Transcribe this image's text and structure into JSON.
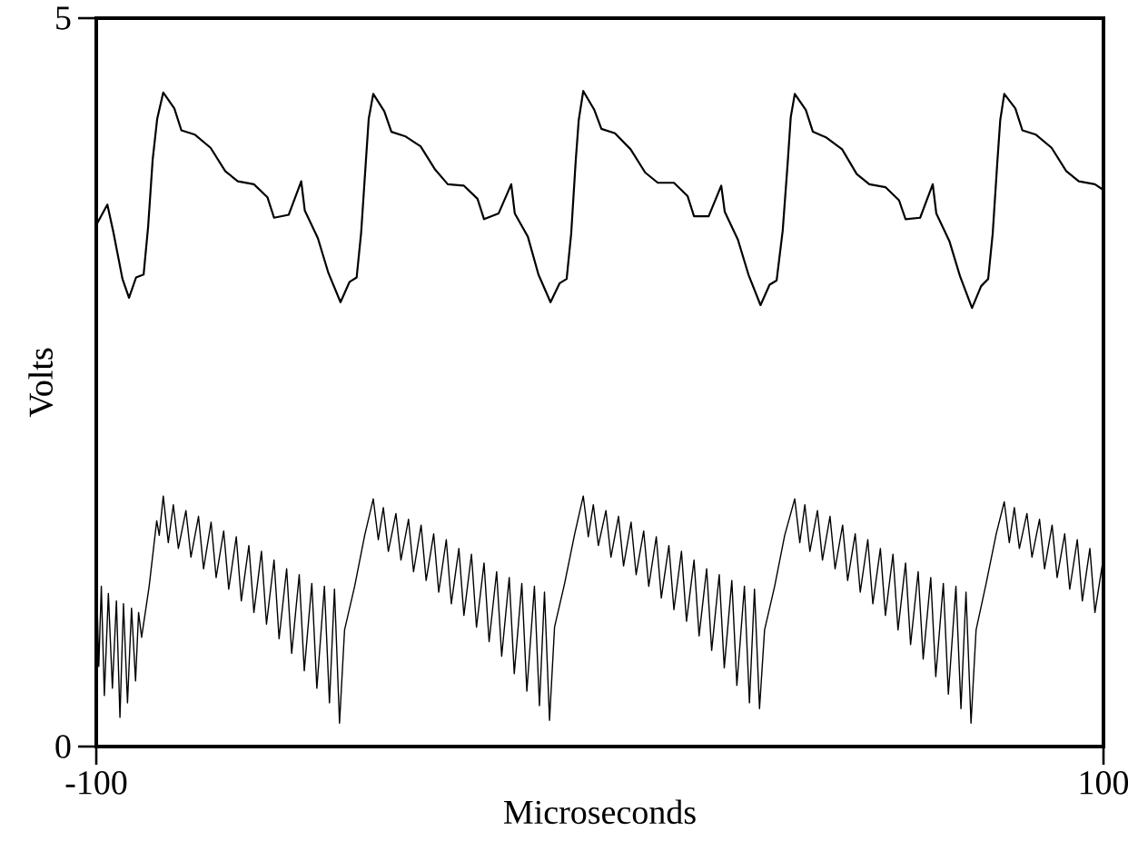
{
  "chart_data": {
    "type": "line",
    "xlabel": "Microseconds",
    "ylabel": "Volts",
    "xlim": [
      -100,
      100
    ],
    "ylim": [
      0,
      5
    ],
    "xticks": [
      -100,
      100
    ],
    "yticks": [
      0,
      5
    ],
    "series": [
      {
        "color": "#000000",
        "x": [
          -100,
          -97.8,
          -96.6,
          -94.8,
          -93.5,
          -92.1,
          -90.6,
          -89.7,
          -88.8,
          -87.9,
          -86.7,
          -84.5,
          -83.1,
          -80.4,
          -77.3,
          -74.4,
          -71.9,
          -68.7,
          -66.0,
          -64.7,
          -61.8,
          -59.3,
          -58.6,
          -56.0,
          -53.9,
          -51.5,
          -49.7,
          -48.3,
          -47.4,
          -46.5,
          -45.9,
          -45.0,
          -42.8,
          -41.4,
          -38.7,
          -35.6,
          -32.7,
          -30.2,
          -27.0,
          -24.3,
          -23.0,
          -20.1,
          -17.6,
          -16.9,
          -14.3,
          -12.2,
          -9.8,
          -8.0,
          -6.6,
          -5.7,
          -4.8,
          -4.2,
          -3.3,
          -1.1,
          0.3,
          3.0,
          6.1,
          9.0,
          11.5,
          14.7,
          17.4,
          18.7,
          21.6,
          24.1,
          24.8,
          27.4,
          29.5,
          31.9,
          33.7,
          35.1,
          36.3,
          37.3,
          37.9,
          38.7,
          40.9,
          42.3,
          45.0,
          48.1,
          51.0,
          53.5,
          56.7,
          59.4,
          60.7,
          63.6,
          66.1,
          66.8,
          69.4,
          71.5,
          73.9,
          75.7,
          77.1,
          78.0,
          78.9,
          79.5,
          80.3,
          82.5,
          83.9,
          86.6,
          89.7,
          92.6,
          95.1,
          98.3,
          100
        ],
        "values": [
          3.58,
          3.72,
          3.53,
          3.21,
          3.08,
          3.22,
          3.24,
          3.57,
          4.03,
          4.31,
          4.49,
          4.38,
          4.23,
          4.2,
          4.11,
          3.95,
          3.88,
          3.86,
          3.77,
          3.63,
          3.65,
          3.88,
          3.68,
          3.49,
          3.25,
          3.05,
          3.19,
          3.22,
          3.53,
          4.0,
          4.31,
          4.48,
          4.36,
          4.22,
          4.19,
          4.12,
          3.96,
          3.86,
          3.85,
          3.76,
          3.62,
          3.66,
          3.86,
          3.66,
          3.5,
          3.24,
          3.05,
          3.18,
          3.21,
          3.52,
          4.02,
          4.3,
          4.5,
          4.37,
          4.24,
          4.21,
          4.1,
          3.94,
          3.87,
          3.87,
          3.78,
          3.64,
          3.64,
          3.85,
          3.67,
          3.48,
          3.24,
          3.03,
          3.17,
          3.2,
          3.54,
          4.01,
          4.32,
          4.48,
          4.37,
          4.22,
          4.18,
          4.1,
          3.93,
          3.86,
          3.84,
          3.75,
          3.62,
          3.63,
          3.86,
          3.66,
          3.47,
          3.23,
          3.01,
          3.16,
          3.21,
          3.52,
          4.0,
          4.3,
          4.48,
          4.38,
          4.23,
          4.2,
          4.11,
          3.95,
          3.88,
          3.86,
          3.82
        ]
      },
      {
        "color": "#000000",
        "x": [
          -100,
          -99.5,
          -99,
          -98.4,
          -97.6,
          -96.8,
          -96,
          -95.3,
          -94.6,
          -93.8,
          -93,
          -92.2,
          -91.6,
          -91,
          -89.5,
          -88,
          -87.5,
          -86.7,
          -85.7,
          -84.7,
          -83.7,
          -82.2,
          -81.2,
          -79.7,
          -78.7,
          -77.2,
          -76.2,
          -74.7,
          -73.7,
          -72.2,
          -71.2,
          -69.7,
          -68.7,
          -67.2,
          -66.2,
          -64.7,
          -63.7,
          -62.2,
          -61.2,
          -59.7,
          -58.7,
          -57.2,
          -56.2,
          -54.7,
          -53.7,
          -52.7,
          -51.7,
          -50.7,
          -48.7,
          -46.7,
          -45.0,
          -44.0,
          -43.0,
          -42.0,
          -40.5,
          -39.5,
          -38.0,
          -37.0,
          -35.5,
          -34.5,
          -33.0,
          -32.0,
          -30.5,
          -29.5,
          -28.0,
          -27.0,
          -25.5,
          -24.5,
          -23.0,
          -22.0,
          -20.5,
          -19.5,
          -18.0,
          -17.0,
          -15.5,
          -14.5,
          -13.0,
          -12.0,
          -11.0,
          -10.0,
          -9.0,
          -7.0,
          -5.0,
          -3.3,
          -2.3,
          -1.3,
          -0.3,
          1.2,
          2.2,
          3.7,
          4.7,
          6.2,
          7.2,
          8.7,
          9.7,
          11.2,
          12.2,
          13.7,
          14.7,
          16.2,
          17.2,
          18.7,
          19.7,
          21.2,
          22.2,
          23.7,
          24.7,
          26.2,
          27.2,
          28.7,
          29.7,
          30.7,
          31.7,
          32.7,
          34.7,
          36.7,
          38.7,
          39.7,
          40.7,
          41.7,
          43.2,
          44.2,
          45.7,
          46.7,
          48.2,
          49.2,
          50.7,
          51.7,
          53.2,
          54.2,
          55.7,
          56.7,
          58.2,
          59.2,
          60.7,
          61.7,
          63.2,
          64.2,
          65.7,
          66.7,
          68.2,
          69.2,
          70.7,
          71.7,
          72.7,
          73.7,
          74.7,
          76.7,
          78.7,
          80.3,
          81.3,
          82.3,
          83.3,
          84.8,
          85.8,
          87.3,
          88.3,
          89.8,
          90.8,
          92.3,
          93.3,
          94.8,
          95.8,
          97.3,
          98.3,
          100
        ],
        "values": [
          1.2,
          0.55,
          1.1,
          0.35,
          1.05,
          0.4,
          1.0,
          0.2,
          0.98,
          0.3,
          0.95,
          0.45,
          0.92,
          0.75,
          1.1,
          1.55,
          1.45,
          1.72,
          1.4,
          1.66,
          1.36,
          1.62,
          1.3,
          1.58,
          1.22,
          1.54,
          1.16,
          1.48,
          1.08,
          1.44,
          1.0,
          1.38,
          0.92,
          1.34,
          0.84,
          1.28,
          0.74,
          1.22,
          0.64,
          1.18,
          0.52,
          1.12,
          0.4,
          1.1,
          0.3,
          1.08,
          0.16,
          0.8,
          1.1,
          1.45,
          1.7,
          1.42,
          1.64,
          1.34,
          1.6,
          1.28,
          1.56,
          1.2,
          1.52,
          1.14,
          1.46,
          1.06,
          1.42,
          0.98,
          1.36,
          0.9,
          1.32,
          0.82,
          1.26,
          0.72,
          1.2,
          0.62,
          1.16,
          0.5,
          1.12,
          0.38,
          1.1,
          0.28,
          1.06,
          0.18,
          0.82,
          1.12,
          1.46,
          1.72,
          1.44,
          1.66,
          1.38,
          1.62,
          1.3,
          1.58,
          1.24,
          1.54,
          1.18,
          1.48,
          1.1,
          1.44,
          1.02,
          1.38,
          0.94,
          1.34,
          0.86,
          1.28,
          0.76,
          1.22,
          0.66,
          1.18,
          0.54,
          1.14,
          0.42,
          1.1,
          0.3,
          1.08,
          0.26,
          0.8,
          1.1,
          1.45,
          1.7,
          1.4,
          1.66,
          1.34,
          1.62,
          1.28,
          1.58,
          1.22,
          1.52,
          1.14,
          1.46,
          1.06,
          1.42,
          0.98,
          1.36,
          0.9,
          1.32,
          0.8,
          1.26,
          0.7,
          1.2,
          0.6,
          1.16,
          0.48,
          1.12,
          0.36,
          1.1,
          0.26,
          1.06,
          0.16,
          0.8,
          1.12,
          1.46,
          1.68,
          1.4,
          1.64,
          1.36,
          1.6,
          1.3,
          1.56,
          1.22,
          1.52,
          1.16,
          1.46,
          1.08,
          1.42,
          1.0,
          1.36,
          0.92,
          1.3
        ]
      }
    ]
  }
}
